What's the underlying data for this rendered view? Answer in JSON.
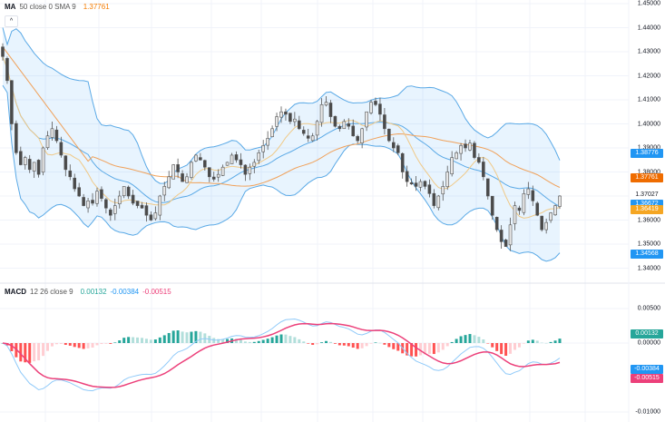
{
  "main_legend": {
    "name": "MA",
    "params": "50 close 0 SMA 9",
    "value": "1.37761",
    "value_color": "#f57c00"
  },
  "macd_legend": {
    "name": "MACD",
    "params": "12 26 close 9",
    "hist_value": "0.00132",
    "macd_value": "-0.00384",
    "signal_value": "-0.00515"
  },
  "collapse_button": "^",
  "price_axis": {
    "ticks": [
      "1.45000",
      "1.44000",
      "1.43000",
      "1.42000",
      "1.41000",
      "1.40000",
      "1.39000",
      "1.38000",
      "1.37000",
      "1.36000",
      "1.35000",
      "1.34000"
    ],
    "badges": [
      {
        "label": "1.38776",
        "color": "#2196f3",
        "price": 1.38776
      },
      {
        "label": "1.37761",
        "color": "#ef6c00",
        "price": 1.37761
      },
      {
        "label": "1.37027",
        "color": "#ffffff",
        "text_color": "#131722",
        "price": 1.37027
      },
      {
        "label": "1.36672",
        "color": "#2196f3",
        "price": 1.36672
      },
      {
        "label": "1.36419",
        "color": "#f5a623",
        "price": 1.36419
      },
      {
        "label": "1.34568",
        "color": "#2196f3",
        "price": 1.34568
      }
    ]
  },
  "macd_axis": {
    "ticks": [
      "0.00500",
      "0.00000",
      "-0.01000"
    ],
    "badges": [
      {
        "label": "0.00132",
        "color": "#26a69a",
        "value": 0.00132
      },
      {
        "label": "-0.00384",
        "color": "#2196f3",
        "value": -0.00384
      },
      {
        "label": "-0.00515",
        "color": "#ec407a",
        "value": -0.00515
      }
    ]
  },
  "chart_data": [
    {
      "type": "candlestick",
      "title": "MA 50 close 0 SMA 9",
      "ylim": [
        1.335,
        1.451
      ],
      "y_ticks": [
        1.45,
        1.44,
        1.43,
        1.42,
        1.41,
        1.4,
        1.39,
        1.38,
        1.37,
        1.36,
        1.35,
        1.34
      ],
      "close_path": [
        1.428,
        1.418,
        1.4,
        1.388,
        1.383,
        1.386,
        1.381,
        1.384,
        1.379,
        1.39,
        1.395,
        1.398,
        1.393,
        1.387,
        1.381,
        1.378,
        1.373,
        1.37,
        1.366,
        1.368,
        1.367,
        1.372,
        1.369,
        1.365,
        1.362,
        1.366,
        1.37,
        1.374,
        1.37,
        1.367,
        1.366,
        1.365,
        1.362,
        1.36,
        1.363,
        1.37,
        1.374,
        1.378,
        1.383,
        1.38,
        1.376,
        1.378,
        1.384,
        1.387,
        1.385,
        1.382,
        1.378,
        1.377,
        1.379,
        1.382,
        1.384,
        1.387,
        1.385,
        1.383,
        1.379,
        1.382,
        1.384,
        1.388,
        1.391,
        1.394,
        1.398,
        1.403,
        1.405,
        1.404,
        1.401,
        1.402,
        1.398,
        1.396,
        1.394,
        1.395,
        1.401,
        1.408,
        1.409,
        1.403,
        1.399,
        1.398,
        1.401,
        1.399,
        1.395,
        1.393,
        1.398,
        1.405,
        1.409,
        1.408,
        1.404,
        1.398,
        1.393,
        1.39,
        1.388,
        1.38,
        1.376,
        1.375,
        1.374,
        1.376,
        1.374,
        1.371,
        1.366,
        1.37,
        1.374,
        1.38,
        1.386,
        1.388,
        1.391,
        1.39,
        1.392,
        1.386,
        1.384,
        1.378,
        1.37,
        1.362,
        1.356,
        1.351,
        1.349,
        1.358,
        1.366,
        1.364,
        1.371,
        1.373,
        1.368,
        1.362,
        1.356,
        1.359,
        1.363,
        1.366,
        1.37
      ],
      "series": [
        {
          "name": "Bollinger Upper",
          "color": "#5aa9e6"
        },
        {
          "name": "Bollinger Basis",
          "color": "#5aa9e6"
        },
        {
          "name": "Bollinger Lower",
          "color": "#5aa9e6"
        },
        {
          "name": "MA 50 (SMA 9)",
          "color": "#f0a15a",
          "last": 1.37761
        },
        {
          "name": "Fast MA",
          "color": "#f0c987"
        }
      ],
      "last_close": 1.37027
    },
    {
      "type": "bar+line",
      "title": "MACD 12 26 close 9",
      "ylim": [
        -0.0115,
        0.0065
      ],
      "y_ticks": [
        0.005,
        0.0,
        -0.01
      ],
      "series": [
        {
          "name": "Histogram",
          "last": 0.00132
        },
        {
          "name": "MACD",
          "color": "#90caf9",
          "last": -0.00384
        },
        {
          "name": "Signal",
          "color": "#ec407a",
          "last": -0.00515
        }
      ]
    }
  ]
}
